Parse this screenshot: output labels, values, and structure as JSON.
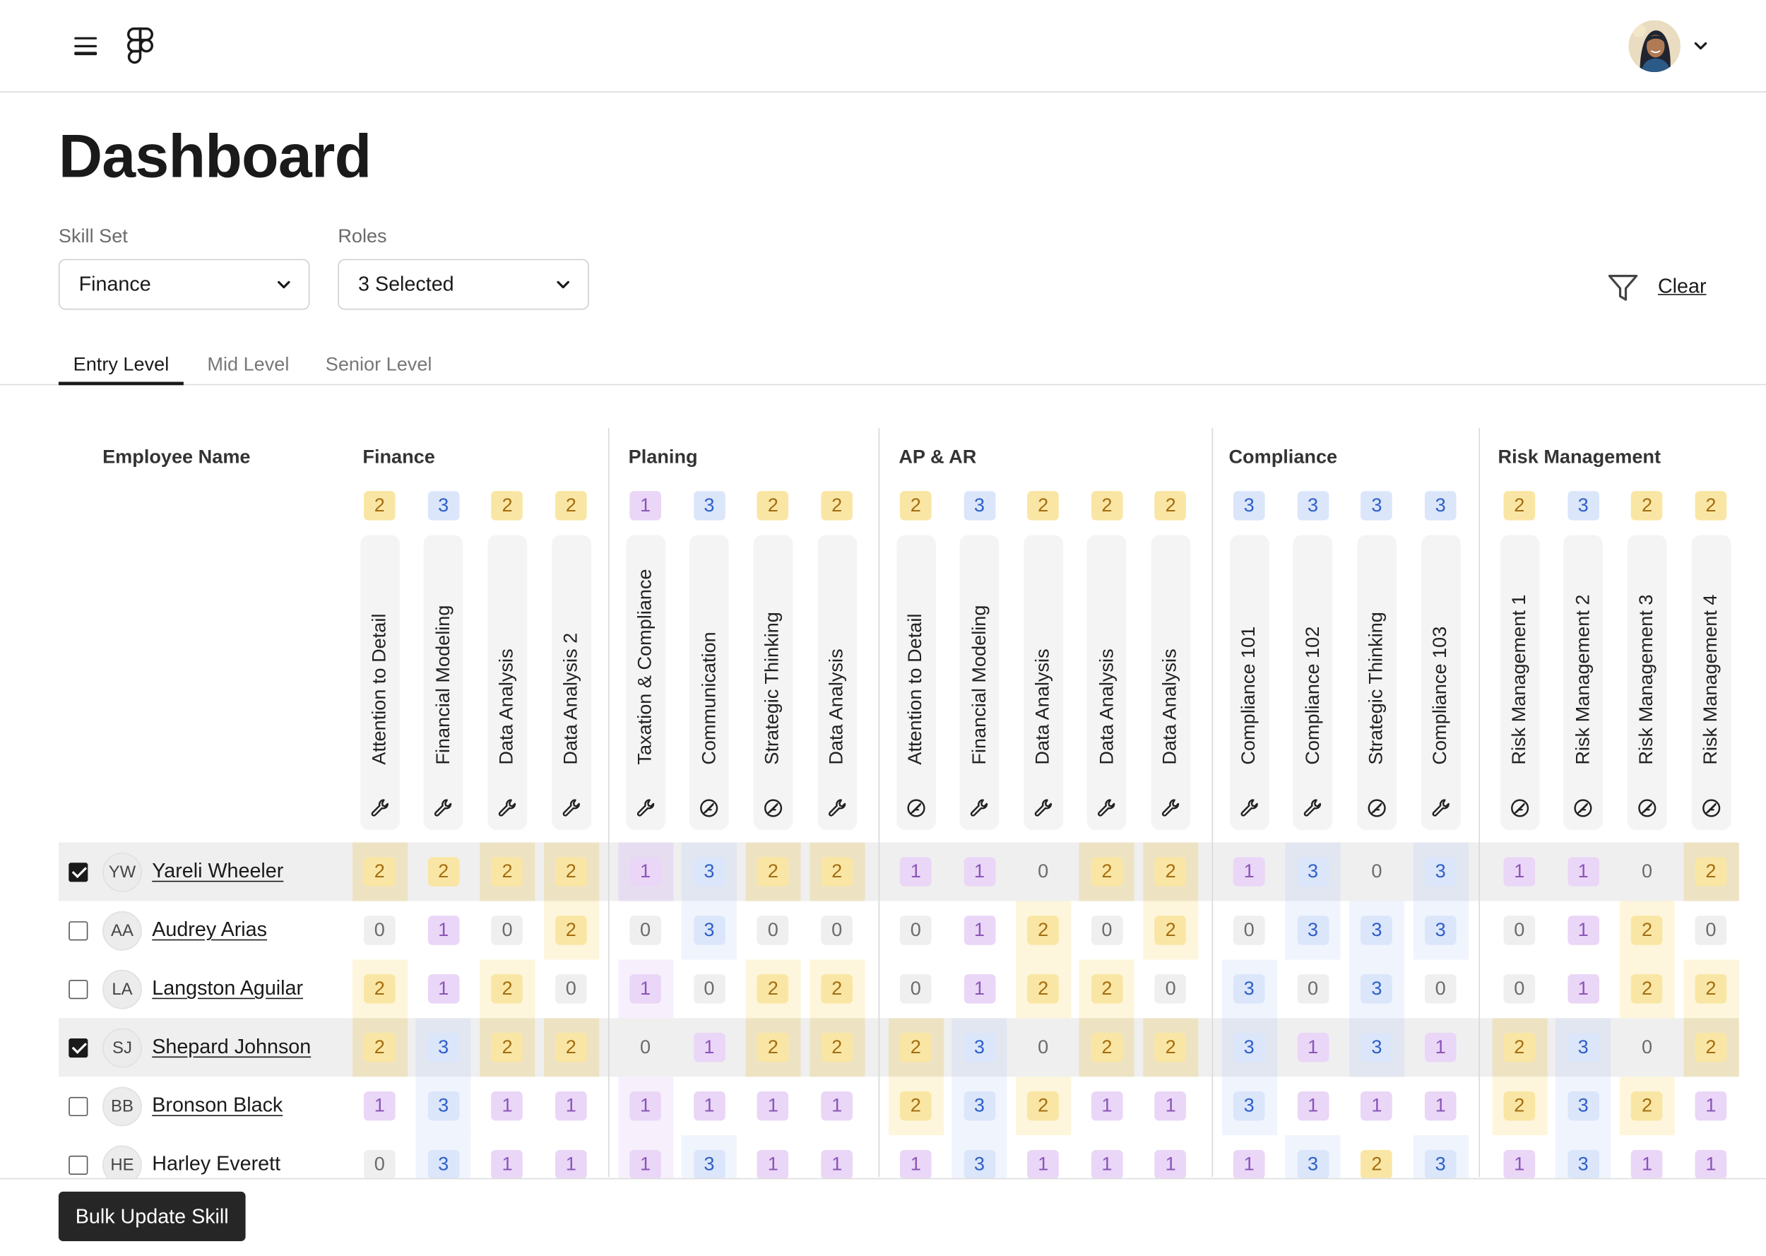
{
  "header": {
    "menu_icon": "hamburger-menu-icon",
    "logo_icon": "figma-logo-icon",
    "avatar_icon": "user-avatar",
    "chevron_icon": "chevron-down-icon"
  },
  "page": {
    "title": "Dashboard"
  },
  "filters": {
    "skill_set": {
      "label": "Skill Set",
      "value": "Finance"
    },
    "roles": {
      "label": "Roles",
      "value": "3 Selected"
    },
    "filter_icon": "filter-icon",
    "clear_label": "Clear"
  },
  "tabs": [
    {
      "label": "Entry Level",
      "active": true
    },
    {
      "label": "Mid Level",
      "active": false
    },
    {
      "label": "Senior Level",
      "active": false
    }
  ],
  "table": {
    "employee_header": "Employee Name",
    "groups": [
      {
        "name": "Finance",
        "skills": [
          {
            "label": "Attention to Detail",
            "required": 2,
            "icon": "wrench-icon"
          },
          {
            "label": "Financial Modeling",
            "required": 3,
            "icon": "wrench-icon"
          },
          {
            "label": "Data Analysis",
            "required": 2,
            "icon": "wrench-icon"
          },
          {
            "label": "Data Analysis 2",
            "required": 2,
            "icon": "wrench-icon"
          }
        ]
      },
      {
        "name": "Planing",
        "skills": [
          {
            "label": "Taxation & Compliance",
            "required": 1,
            "icon": "wrench-icon"
          },
          {
            "label": "Communication",
            "required": 3,
            "icon": "feather-icon"
          },
          {
            "label": "Strategic Thinking",
            "required": 2,
            "icon": "feather-icon"
          },
          {
            "label": "Data Analysis",
            "required": 2,
            "icon": "wrench-icon"
          }
        ]
      },
      {
        "name": "AP & AR",
        "skills": [
          {
            "label": "Attention to Detail",
            "required": 2,
            "icon": "feather-icon"
          },
          {
            "label": "Financial Modeling",
            "required": 3,
            "icon": "wrench-icon"
          },
          {
            "label": "Data Analysis",
            "required": 2,
            "icon": "wrench-icon"
          },
          {
            "label": "Data Analysis",
            "required": 2,
            "icon": "wrench-icon"
          },
          {
            "label": "Data Analysis",
            "required": 2,
            "icon": "wrench-icon"
          }
        ]
      },
      {
        "name": "Compliance",
        "skills": [
          {
            "label": "Compliance 101",
            "required": 3,
            "icon": "wrench-icon"
          },
          {
            "label": "Compliance 102",
            "required": 3,
            "icon": "wrench-icon"
          },
          {
            "label": "Strategic Thinking",
            "required": 3,
            "icon": "feather-icon"
          },
          {
            "label": "Compliance 103",
            "required": 3,
            "icon": "wrench-icon"
          }
        ]
      },
      {
        "name": "Risk Management",
        "skills": [
          {
            "label": "Risk Management 1",
            "required": 2,
            "icon": "feather-icon"
          },
          {
            "label": "Risk Management 2",
            "required": 3,
            "icon": "feather-icon"
          },
          {
            "label": "Risk Management 3",
            "required": 2,
            "icon": "feather-icon"
          },
          {
            "label": "Risk Management 4",
            "required": 2,
            "icon": "feather-icon"
          }
        ]
      }
    ],
    "rows": [
      {
        "initials": "YW",
        "name": "Yareli Wheeler",
        "selected": true,
        "linked": true,
        "scores": [
          2,
          2,
          2,
          2,
          1,
          3,
          2,
          2,
          1,
          1,
          0,
          2,
          2,
          1,
          3,
          0,
          3,
          1,
          1,
          0,
          2
        ]
      },
      {
        "initials": "AA",
        "name": "Audrey Arias",
        "selected": false,
        "linked": true,
        "scores": [
          0,
          1,
          0,
          2,
          0,
          3,
          0,
          0,
          0,
          1,
          2,
          0,
          2,
          0,
          3,
          3,
          3,
          0,
          1,
          2,
          0
        ]
      },
      {
        "initials": "LA",
        "name": "Langston Aguilar",
        "selected": false,
        "linked": true,
        "scores": [
          2,
          1,
          2,
          0,
          1,
          0,
          2,
          2,
          0,
          1,
          2,
          2,
          0,
          3,
          0,
          3,
          0,
          0,
          1,
          2,
          2
        ]
      },
      {
        "initials": "SJ",
        "name": "Shepard Johnson",
        "selected": true,
        "linked": true,
        "scores": [
          2,
          3,
          2,
          2,
          0,
          1,
          2,
          2,
          2,
          3,
          0,
          2,
          2,
          3,
          1,
          3,
          1,
          2,
          3,
          0,
          2
        ]
      },
      {
        "initials": "BB",
        "name": "Bronson Black",
        "selected": false,
        "linked": true,
        "scores": [
          1,
          3,
          1,
          1,
          1,
          1,
          1,
          1,
          2,
          3,
          2,
          1,
          1,
          3,
          1,
          1,
          1,
          2,
          3,
          2,
          1
        ]
      },
      {
        "initials": "HE",
        "name": "Harley Everett",
        "selected": false,
        "linked": false,
        "scores": [
          0,
          3,
          1,
          1,
          1,
          3,
          1,
          1,
          1,
          3,
          1,
          1,
          1,
          1,
          3,
          2,
          3,
          1,
          3,
          1,
          1
        ]
      }
    ]
  },
  "actions": {
    "bulk_update_label": "Bulk Update Skill"
  }
}
